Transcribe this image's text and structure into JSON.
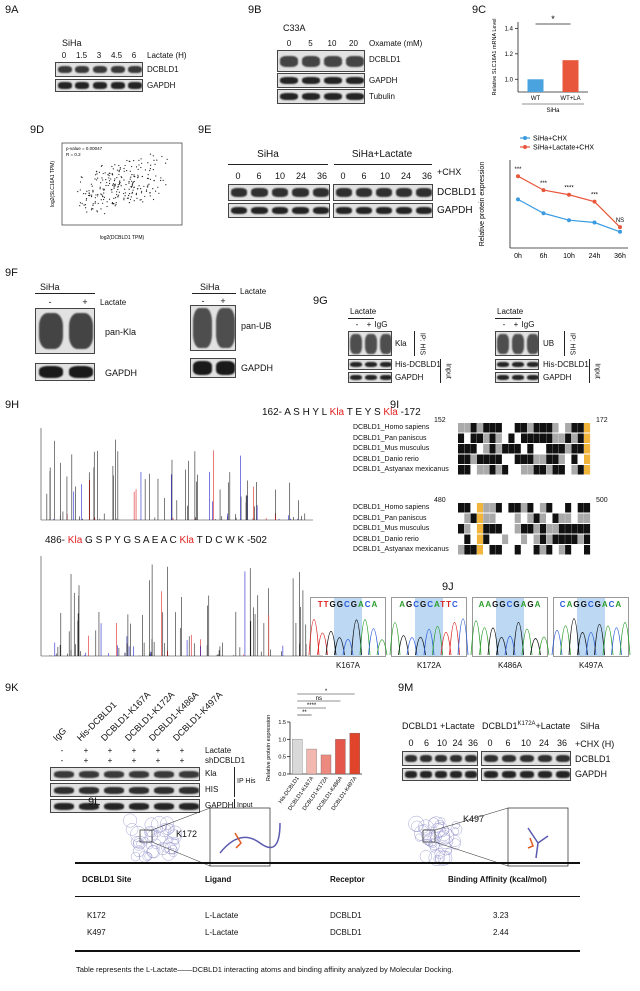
{
  "fig9A": {
    "label": "9A",
    "cell": "SiHa",
    "treatment": "Lactate (H)",
    "doses": [
      "0",
      "1.5",
      "3",
      "4.5",
      "6"
    ],
    "bands": [
      "DCBLD1",
      "GAPDH"
    ]
  },
  "fig9B": {
    "label": "9B",
    "cell": "C33A",
    "treatment": "Oxamate (mM)",
    "doses": [
      "0",
      "5",
      "10",
      "20"
    ],
    "bands": [
      "DCBLD1",
      "GAPDH",
      "Tubulin"
    ]
  },
  "fig9C": {
    "label": "9C",
    "chart_data": {
      "type": "bar",
      "y_label": "Relative SLC16A1 mRNA Level",
      "categories": [
        "WT",
        "WT+LA"
      ],
      "group_label": "SiHa",
      "values": [
        1.0,
        1.15
      ],
      "colors": [
        "#4aa3df",
        "#e8573c"
      ],
      "significance": "*",
      "ylim": [
        0.9,
        1.45
      ],
      "yticks": [
        {
          "value": 1,
          "label": "1.0"
        },
        1.2,
        1.4
      ]
    }
  },
  "fig9D": {
    "label": "9D",
    "annotations": [
      "p-value = 0.00047",
      "R = 0.2"
    ],
    "x_label": "log2(DCBLD1 TPM)",
    "y_label": "log2(SLC16A1 TPM)"
  },
  "fig9E": {
    "label": "9E",
    "groups": [
      "SiHa",
      "SiHa+Lactate"
    ],
    "treatment": "+CHX",
    "times": [
      "0",
      "6",
      "10",
      "24",
      "36"
    ],
    "bands": [
      "DCBLD1",
      "GAPDH"
    ],
    "chart_data": {
      "type": "line",
      "y_label": "Relative protein expression",
      "categories": [
        "0h",
        "6h",
        "10h",
        "24h",
        "36h"
      ],
      "series": [
        {
          "name": "SiHa+CHX",
          "color": "#3b9be0",
          "values": [
            1.05,
            0.75,
            0.6,
            0.55,
            0.35
          ]
        },
        {
          "name": "SiHa+Lactate+CHX",
          "color": "#e8573c",
          "values": [
            1.55,
            1.25,
            1.15,
            1.0,
            0.45
          ]
        }
      ],
      "significance": [
        "***",
        "***",
        "****",
        "***",
        "NS"
      ],
      "ylim": [
        0,
        1.9
      ]
    }
  },
  "fig9F": {
    "label": "9F",
    "blots": [
      {
        "cell": "SiHa",
        "treatment": "Lactate",
        "signs": [
          "-",
          "+"
        ],
        "bands": [
          "pan-Kla",
          "GAPDH"
        ]
      },
      {
        "cell": "SiHa",
        "treatment": "Lactate",
        "signs": [
          "-",
          "+"
        ],
        "bands": [
          "pan-UB",
          "GAPDH"
        ]
      }
    ]
  },
  "fig9G": {
    "label": "9G",
    "blots": [
      {
        "treatment": "Lactate",
        "lanes": [
          "-",
          "+",
          "IgG"
        ],
        "bands": [
          "Kla",
          "His-DCBLD1",
          "GAPDH"
        ],
        "sections": [
          "IP: HIS",
          "Input"
        ]
      },
      {
        "treatment": "Lactate",
        "lanes": [
          "-",
          "+",
          "IgG"
        ],
        "bands": [
          "UB",
          "His-DCBLD1",
          "GAPDH"
        ],
        "sections": [
          "IP: HIS",
          "Input"
        ]
      }
    ]
  },
  "fig9H": {
    "label": "9H",
    "peptides": [
      {
        "segments": [
          {
            "text": "162- A S H Y L ",
            "color": "#111111"
          },
          {
            "text": "Kla",
            "color": "#e02020"
          },
          {
            "text": " T E Y S ",
            "color": "#111111"
          },
          {
            "text": "Kla",
            "color": "#e02020"
          },
          {
            "text": " -172",
            "color": "#111111"
          }
        ]
      },
      {
        "segments": [
          {
            "text": "486- ",
            "color": "#111111"
          },
          {
            "text": "Kla",
            "color": "#e02020"
          },
          {
            "text": " G S P Y G S A E A C ",
            "color": "#111111"
          },
          {
            "text": "Kla",
            "color": "#e02020"
          },
          {
            "text": " T D C W K -502",
            "color": "#111111"
          }
        ]
      }
    ]
  },
  "fig9I": {
    "label": "9I",
    "blocks": [
      {
        "start": "152",
        "end": "172",
        "species": [
          "DCBLD1_Homo sapiens",
          "DCBLD1_Pan paniscus",
          "DCBLD1_Mus musculus",
          "DCBLD1_Danio rerio",
          "DCBLD1_Astyanax mexicanus"
        ]
      },
      {
        "start": "480",
        "end": "500",
        "species": [
          "DCBLD1_Homo sapiens",
          "DCBLD1_Pan paniscus",
          "DCBLD1_Mus musculus",
          "DCBLD1_Danio rerio",
          "DCBLD1_Astyanax mexicanus"
        ]
      }
    ]
  },
  "fig9J": {
    "label": "9J",
    "traces": [
      {
        "sequence": "TTGGCGACA",
        "mutant": "K167A"
      },
      {
        "sequence": "AGCGCATTC",
        "mutant": "K172A"
      },
      {
        "sequence": "AAGGCGAGA",
        "mutant": "K486A"
      },
      {
        "sequence": "CAGGCGACA",
        "mutant": "K497A"
      }
    ]
  },
  "fig9K": {
    "label": "9K",
    "lanes": [
      "IgG",
      "His-DCBLD1",
      "DCBLD1-K167A",
      "DCBLD1-K172A",
      "DCBLD1-K486A",
      "DCBLD1-K497A"
    ],
    "conditions": [
      {
        "name": "Lactate",
        "signs": [
          "-",
          "+",
          "+",
          "+",
          "+",
          "+"
        ]
      },
      {
        "name": "shDCBLD1",
        "signs": [
          "-",
          "+",
          "+",
          "+",
          "+",
          "+"
        ]
      }
    ],
    "bands": [
      "Kla",
      "HIS",
      "GAPDH"
    ],
    "sections": [
      "IP His",
      "Input"
    ],
    "chart_data": {
      "type": "bar",
      "y_label": "Relative protein expression",
      "categories": [
        "His-DCBLD1",
        "DCBLD1-K167A",
        "DCBLD1-K172A",
        "DCBLD1-K486A",
        "DCBLD1-K497A"
      ],
      "values": [
        1.0,
        0.72,
        0.55,
        1.0,
        1.18
      ],
      "colors": [
        "#d9d9d9",
        "#f2b8b0",
        "#ec8a80",
        "#e5574a",
        "#e0452c"
      ],
      "significance": [
        "*",
        "ns",
        "****",
        "**"
      ],
      "ylim": [
        0,
        1.5
      ],
      "yticks": [
        {
          "value": 0,
          "label": "0.0"
        },
        0.5,
        {
          "value": 1,
          "label": "1.0"
        },
        1.5
      ]
    }
  },
  "fig9L": {
    "label": "9L",
    "sites": [
      "K172",
      "K497"
    ]
  },
  "fig9M": {
    "label": "9M",
    "group1": "DCBLD1 +Lactate",
    "group2": {
      "base": "DCBLD1",
      "superscript": "K172A",
      "suffix": "+Lactate"
    },
    "cell": "SiHa",
    "treatment": "+CHX (H)",
    "times": [
      "0",
      "6",
      "10",
      "24",
      "36"
    ],
    "bands": [
      "DCBLD1",
      "GAPDH"
    ]
  },
  "table": {
    "header": [
      "DCBLD1 Site",
      "Ligand",
      "Receptor",
      "Binding Affinity (kcal/mol)"
    ],
    "rows": [
      [
        "K172",
        "L-Lactate",
        "DCBLD1",
        3.23
      ],
      [
        "K497",
        "L-Lactate",
        "DCBLD1",
        2.44
      ]
    ],
    "caption": "Table represents the L-Lactate——DCBLD1 interacting atoms and binding affinity analyzed by Molecular Docking."
  }
}
